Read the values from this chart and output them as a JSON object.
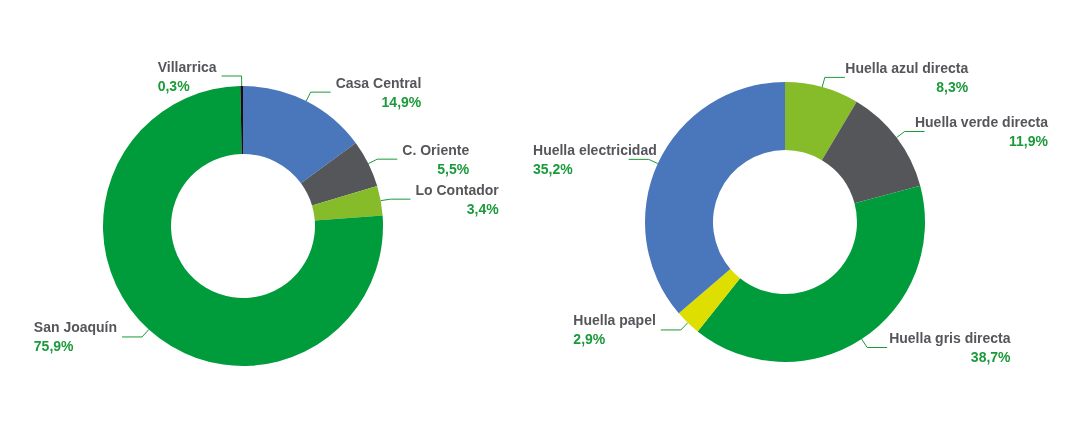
{
  "chart_data": [
    {
      "type": "donut",
      "categories": [
        "Casa Central",
        "C. Oriente",
        "Lo Contador",
        "San Joaquín",
        "Villarrica"
      ],
      "values": [
        14.9,
        5.5,
        3.4,
        75.9,
        0.3
      ],
      "colors": [
        "#4a76bb",
        "#55565a",
        "#86bb2a",
        "#009c3b",
        "#111111"
      ],
      "value_labels": [
        "14,9%",
        "5,5%",
        "3,4%",
        "75,9%",
        "0,3%"
      ]
    },
    {
      "type": "donut",
      "categories": [
        "Huella azul directa",
        "Huella verde directa",
        "Huella gris directa",
        "Huella papel",
        "Huella electricidad"
      ],
      "values": [
        8.3,
        11.9,
        38.7,
        2.9,
        35.2
      ],
      "colors": [
        "#86bb2a",
        "#55565a",
        "#009c3b",
        "#dede00",
        "#4a76bb"
      ],
      "value_labels": [
        "8,3%",
        "11,9%",
        "38,7%",
        "2,9%",
        "35,2%"
      ]
    }
  ]
}
